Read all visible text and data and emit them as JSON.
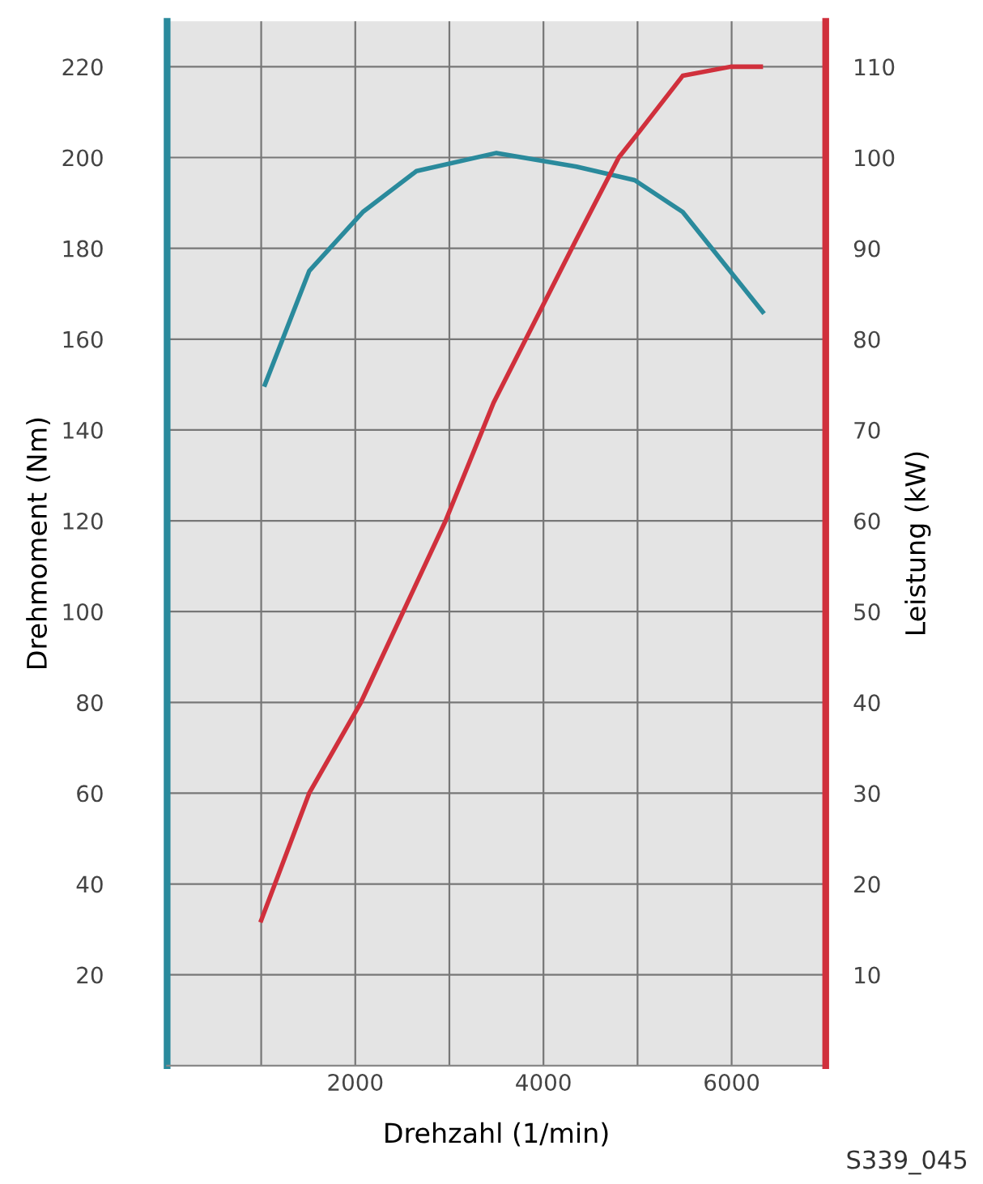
{
  "chart_data": {
    "type": "line",
    "xlabel": "Drehzahl (1/min)",
    "ylabel": "Drehmoment (Nm)",
    "y2label": "Leistung (kW)",
    "xlim": [
      0,
      7000
    ],
    "xticks": [
      {
        "value": 1000,
        "label": null
      },
      2000,
      {
        "value": 3000,
        "label": null
      },
      4000,
      {
        "value": 5000,
        "label": null
      },
      6000
    ],
    "ylim": [
      0,
      230
    ],
    "yticks": [
      20,
      40,
      60,
      80,
      100,
      120,
      140,
      160,
      180,
      200,
      220
    ],
    "y2lim": [
      0,
      115
    ],
    "y2ticks": [
      10,
      20,
      30,
      40,
      50,
      60,
      70,
      80,
      90,
      100,
      110
    ],
    "grid": true,
    "line_style": "solid",
    "marker": "none",
    "series": [
      {
        "color": "#2a8a9c",
        "x": [
          1040,
          1510,
          2080,
          2650,
          3500,
          4350,
          4970,
          5480,
          6330
        ],
        "values": [
          150,
          175,
          188,
          197,
          201,
          198,
          195,
          188,
          166
        ]
      },
      {
        "color": "#d0303c",
        "axis": "y2",
        "x": [
          1000,
          1510,
          2060,
          2960,
          3470,
          4350,
          4800,
          5030,
          5480,
          5990,
          6310
        ],
        "values": [
          16,
          30,
          40,
          60,
          73,
          91,
          100,
          103,
          109,
          110,
          110
        ]
      }
    ],
    "annotations": [
      "S339_045"
    ]
  }
}
